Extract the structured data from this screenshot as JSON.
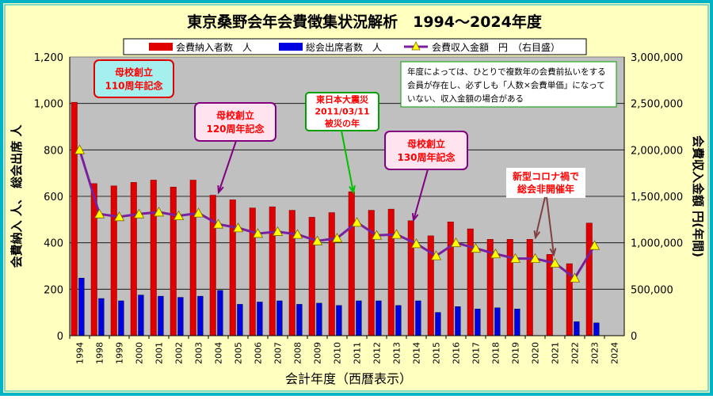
{
  "chart_data": {
    "type": "bar+line",
    "title": "東京桑野会年会費徴集状況解析　1994～2024年度",
    "xlabel": "会計年度（西暦表示）",
    "ylabel_left": "会費納入 人、 総会出席 人",
    "ylabel_right": "会費収入金額 円(年間)",
    "categories": [
      "1994",
      "1998",
      "1999",
      "2000",
      "2001",
      "2002",
      "2003",
      "2004",
      "2005",
      "2006",
      "2007",
      "2008",
      "2009",
      "2010",
      "2011",
      "2012",
      "2013",
      "2014",
      "2015",
      "2016",
      "2017",
      "2018",
      "2019",
      "2020",
      "2021",
      "2022",
      "2023",
      "2024"
    ],
    "y_left": {
      "min": 0,
      "max": 1200,
      "step": 200,
      "tick_labels": [
        "0",
        "200",
        "400",
        "600",
        "800",
        "1,000",
        "1,200"
      ]
    },
    "y_right": {
      "min": 0,
      "max": 3000000,
      "step": 500000,
      "tick_labels": [
        "0",
        "500,000",
        "1,000,000",
        "1,500,000",
        "2,000,000",
        "2,500,000",
        "3,000,000"
      ]
    },
    "grid": true,
    "legend_position": "top",
    "series": [
      {
        "name": "会費納入者数　人",
        "kind": "bar",
        "axis": "left",
        "color": "#e00000",
        "values": [
          1005,
          655,
          645,
          660,
          670,
          640,
          670,
          605,
          585,
          550,
          555,
          540,
          510,
          530,
          620,
          540,
          545,
          495,
          430,
          490,
          460,
          415,
          415,
          415,
          350,
          310,
          485,
          null
        ]
      },
      {
        "name": "総会出席者数　人",
        "kind": "bar",
        "axis": "left",
        "color": "#0000e0",
        "values": [
          248,
          160,
          150,
          175,
          170,
          165,
          170,
          195,
          135,
          145,
          150,
          135,
          140,
          130,
          150,
          150,
          130,
          150,
          100,
          125,
          115,
          120,
          115,
          null,
          null,
          60,
          55,
          null
        ]
      },
      {
        "name": "会費収入金額　円　（右目盛）",
        "kind": "line",
        "axis": "right",
        "color": "#7a1f9e",
        "marker_color": "#ffff00",
        "values": [
          2000000,
          1310000,
          1280000,
          1310000,
          1330000,
          1290000,
          1320000,
          1200000,
          1160000,
          1100000,
          1120000,
          1090000,
          1020000,
          1050000,
          1220000,
          1080000,
          1090000,
          990000,
          860000,
          1000000,
          940000,
          880000,
          830000,
          830000,
          780000,
          620000,
          970000,
          null
        ]
      }
    ],
    "annotations": [
      {
        "id": "a110",
        "text": [
          "母校創立",
          "110周年記念"
        ],
        "color": "#ff0000"
      },
      {
        "id": "a120",
        "text": [
          "母校創立",
          "120周年記念"
        ],
        "color": "#ff0000"
      },
      {
        "id": "a311",
        "text": [
          "東日本大震災",
          "2011/03/11",
          "被災の年"
        ],
        "color": "#ff0000"
      },
      {
        "id": "a130",
        "text": [
          "母校創立",
          "130周年記念"
        ],
        "color": "#ff0000"
      },
      {
        "id": "acovid",
        "text": [
          "新型コロナ禍で",
          "総会非開催年"
        ],
        "color": "#ff0000"
      },
      {
        "id": "anote",
        "text": [
          "年度によっては、ひとりで複数年の会費前払いをする",
          "会員が存在し、必ずしも「人数×会費単価」になって",
          "いない、収入金額の場合がある"
        ],
        "color": "#000000"
      }
    ]
  },
  "colors": {
    "background": "#ffffc0",
    "border": "#00b4c8",
    "plot_bg": "#c0c0c0",
    "grid": "#000000",
    "title": "#000000"
  }
}
